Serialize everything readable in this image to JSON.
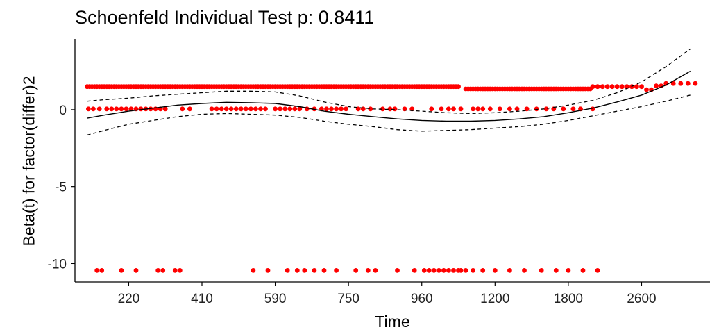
{
  "chart_data": {
    "type": "scatter",
    "title": "Schoenfeld Individual Test p: 0.8411",
    "xlabel": "Time",
    "ylabel": "Beta(t) for factor(differ)2",
    "xticks": [
      {
        "pos": 2,
        "label": "220"
      },
      {
        "pos": 5,
        "label": "410"
      },
      {
        "pos": 8,
        "label": "590"
      },
      {
        "pos": 11,
        "label": "750"
      },
      {
        "pos": 14,
        "label": "960"
      },
      {
        "pos": 17,
        "label": "1200"
      },
      {
        "pos": 20,
        "label": "1800"
      },
      {
        "pos": 23,
        "label": "2600"
      }
    ],
    "yticks": [
      0,
      -5,
      -10
    ],
    "xlim": [
      -0.2,
      25.8
    ],
    "ylim": [
      -11.2,
      4.6
    ],
    "grid": false,
    "colors": {
      "points": "#ff0000",
      "line": "#000000"
    },
    "series": [
      {
        "kind": "points",
        "bands": [
          {
            "y": 1.5,
            "x": [
              0.3,
              0.4,
              0.5,
              0.6,
              0.7,
              0.8,
              0.9,
              1.0,
              1.1,
              1.2,
              1.3,
              1.4,
              1.5,
              1.6,
              1.7,
              1.8,
              1.9,
              2.0,
              2.1,
              2.2,
              2.3,
              2.4,
              2.5,
              2.6,
              2.7,
              2.8,
              2.9,
              3.0,
              3.1,
              3.2,
              3.3,
              3.4,
              3.5,
              3.6,
              3.7,
              3.8,
              3.9,
              4.0,
              4.1,
              4.2,
              4.3,
              4.4,
              4.5,
              4.6,
              4.7,
              4.8,
              4.9,
              5.0,
              5.1,
              5.2,
              5.3,
              5.4,
              5.5,
              5.6,
              5.7,
              5.8,
              5.9,
              6.0,
              6.1,
              6.2,
              6.3,
              6.4,
              6.5,
              6.6,
              6.7,
              6.8,
              6.9,
              7.0,
              7.1,
              7.2,
              7.3,
              7.4,
              7.5,
              7.6,
              7.7,
              7.8,
              7.9,
              8.0,
              8.1,
              8.2,
              8.3,
              8.4,
              8.5,
              8.6,
              8.7,
              8.8,
              8.9,
              9.0,
              9.1,
              9.2,
              9.3,
              9.4,
              9.5,
              9.6,
              9.7,
              9.8,
              9.9,
              10.0,
              10.1,
              10.2,
              10.3,
              10.4,
              10.5,
              10.6,
              10.7,
              10.8,
              10.9,
              11.0,
              11.1,
              11.2,
              11.3,
              11.4,
              11.5,
              11.6,
              11.7,
              11.8,
              11.9,
              12.0,
              12.1,
              12.2,
              12.3,
              12.4,
              12.5,
              12.6,
              12.7,
              12.8,
              12.9,
              13.0,
              13.1,
              13.2,
              13.3,
              13.4,
              13.5,
              13.6,
              13.7,
              13.8,
              13.9,
              14.0,
              14.1,
              14.2,
              14.3,
              14.4,
              14.5,
              14.6,
              14.7,
              14.8,
              14.9,
              15.0,
              15.1,
              15.2,
              15.3,
              15.4,
              15.5
            ]
          },
          {
            "y": 1.35,
            "x": [
              15.8,
              15.9,
              16.0,
              16.1,
              16.2,
              16.3,
              16.4,
              16.5,
              16.6,
              16.7,
              16.8,
              16.9,
              17.0,
              17.1,
              17.2,
              17.3,
              17.4,
              17.5,
              17.6,
              17.7,
              17.8,
              17.9,
              18.0,
              18.1,
              18.2,
              18.3,
              18.4,
              18.5,
              18.6,
              18.7,
              18.8,
              18.9,
              19.0,
              19.1,
              19.2,
              19.3,
              19.4,
              19.5,
              19.6,
              19.7,
              19.8,
              19.9,
              20.0,
              20.1,
              20.2,
              20.3,
              20.4,
              20.5,
              20.6,
              20.7,
              20.8,
              20.9
            ]
          },
          {
            "y": 1.5,
            "x": [
              21.0,
              21.2,
              21.4,
              21.6,
              21.8,
              22.0,
              22.2,
              22.4,
              22.6,
              22.8,
              23.0
            ]
          },
          {
            "y": 1.3,
            "x": [
              23.2,
              23.4
            ]
          },
          {
            "y": 1.55,
            "x": [
              23.6,
              23.8
            ]
          },
          {
            "y": 1.7,
            "x": [
              24.0,
              24.3,
              24.6,
              24.9,
              25.2
            ]
          },
          {
            "y": 0.05,
            "x": [
              0.35,
              0.55,
              0.8,
              1.1,
              1.3,
              1.5,
              1.7,
              1.9,
              2.1,
              2.3,
              2.5,
              2.7,
              2.9,
              3.1,
              3.3,
              3.5,
              4.2,
              4.5,
              5.4,
              5.6,
              5.8,
              6.0,
              6.2,
              6.4,
              6.6,
              6.8,
              7.0,
              7.2,
              7.4,
              7.6,
              8.0,
              8.2,
              8.4,
              8.6,
              8.8,
              9.0,
              9.3,
              9.6,
              9.9,
              10.1,
              10.3,
              10.5,
              10.7,
              10.9,
              11.4,
              11.6,
              11.9,
              12.4,
              12.7,
              12.9,
              13.3,
              13.6,
              14.4,
              14.8,
              15.1,
              15.3,
              15.6,
              16.1,
              16.3,
              16.5,
              16.8,
              17.2,
              17.6,
              17.9,
              18.3,
              18.7,
              19.1,
              19.4,
              19.8,
              20.2,
              20.5,
              21.0
            ]
          },
          {
            "y": -10.45,
            "x": [
              0.7,
              0.9,
              1.7,
              2.3,
              3.2,
              3.4,
              3.9,
              4.1,
              7.1,
              7.7,
              8.5,
              8.9,
              9.2,
              9.6,
              10.0,
              10.5,
              11.3,
              11.8,
              12.1,
              13.0,
              13.7,
              14.1,
              14.3,
              14.5,
              14.7,
              14.9,
              15.1,
              15.3,
              15.5,
              15.6,
              15.8,
              16.1,
              16.5,
              17.0,
              17.6,
              18.2,
              18.9,
              19.5,
              20.0,
              20.6,
              21.2
            ]
          }
        ]
      },
      {
        "kind": "smooth",
        "name": "",
        "x": [
          0.3,
          1.0,
          2.0,
          3.0,
          4.0,
          5.0,
          6.0,
          7.0,
          8.0,
          9.0,
          10.0,
          11.0,
          12.0,
          13.0,
          14.0,
          15.0,
          16.0,
          17.0,
          18.0,
          19.0,
          20.0,
          21.0,
          22.0,
          23.0,
          24.0,
          25.0
        ],
        "fit": [
          -0.55,
          -0.35,
          -0.1,
          0.1,
          0.3,
          0.4,
          0.48,
          0.45,
          0.4,
          0.2,
          -0.1,
          -0.3,
          -0.45,
          -0.6,
          -0.7,
          -0.75,
          -0.75,
          -0.7,
          -0.6,
          -0.45,
          -0.2,
          0.1,
          0.5,
          0.95,
          1.6,
          2.5
        ],
        "upper": [
          0.55,
          0.65,
          0.75,
          0.9,
          1.0,
          1.1,
          1.2,
          1.2,
          1.15,
          0.9,
          0.5,
          0.2,
          0.05,
          0.0,
          -0.1,
          -0.2,
          -0.25,
          -0.2,
          -0.1,
          0.05,
          0.3,
          0.6,
          1.1,
          1.8,
          2.8,
          3.95
        ],
        "lower": [
          -1.65,
          -1.35,
          -0.95,
          -0.7,
          -0.45,
          -0.3,
          -0.25,
          -0.3,
          -0.35,
          -0.5,
          -0.75,
          -0.95,
          -1.1,
          -1.3,
          -1.4,
          -1.35,
          -1.3,
          -1.2,
          -1.1,
          -0.95,
          -0.7,
          -0.4,
          -0.1,
          0.2,
          0.55,
          0.95
        ]
      }
    ]
  }
}
